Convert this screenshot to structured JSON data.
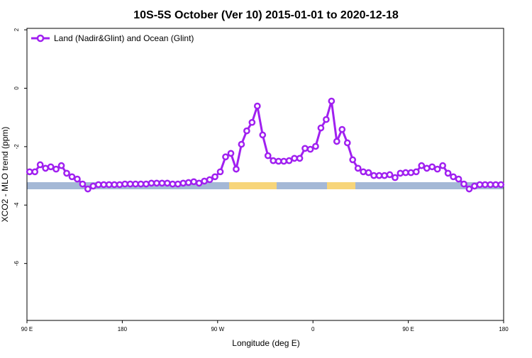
{
  "chart_data": {
    "type": "line",
    "title": "10S-5S October (Ver 10)   2015-01-01 to 2020-12-18",
    "x_label": "Longitude (deg E)",
    "y_label": "XCO2 - MLO trend (ppm)",
    "xlim": [
      90,
      540
    ],
    "ylim": [
      -7.95,
      2.05
    ],
    "xticks": [
      {
        "value": 90,
        "label": "90 E"
      },
      180,
      {
        "value": 270,
        "label": "90 W"
      },
      {
        "value": 360,
        "label": "0"
      },
      {
        "value": 450,
        "label": "90 E"
      },
      {
        "value": 540,
        "label": "180"
      }
    ],
    "yticks": [
      2,
      0,
      -2,
      -4,
      -6
    ],
    "legend_position": "top-left",
    "x": [
      92.5,
      97.5,
      102.5,
      107.5,
      112.5,
      117.5,
      122.5,
      127.5,
      132.5,
      137.5,
      142.5,
      147.5,
      152.5,
      157.5,
      162.5,
      167.5,
      172.5,
      177.5,
      182.5,
      187.5,
      192.5,
      197.5,
      202.5,
      207.5,
      212.5,
      217.5,
      222.5,
      227.5,
      232.5,
      237.5,
      242.5,
      247.5,
      252.5,
      257.5,
      262.5,
      267.5,
      272.5,
      277.5,
      282.5,
      287.5,
      292.5,
      297.5,
      302.5,
      307.5,
      312.5,
      317.5,
      322.5,
      327.5,
      332.5,
      337.5,
      342.5,
      347.5,
      352.5,
      357.5,
      362.5,
      367.5,
      372.5,
      377.5,
      382.5,
      387.5,
      392.5,
      397.5,
      402.5,
      407.5,
      412.5,
      417.5,
      422.5,
      427.5,
      432.5,
      437.5,
      442.5,
      447.5,
      452.5,
      457.5,
      462.5,
      467.5,
      472.5,
      477.5,
      482.5,
      487.5,
      492.5,
      497.5,
      502.5,
      507.5,
      512.5,
      517.5,
      522.5,
      527.5,
      532.5,
      537.5
    ],
    "series": [
      {
        "name": "Land (Nadir&Glint) and Ocean (Glint)",
        "color": "#a020f0",
        "values": [
          -2.86,
          -2.86,
          -2.62,
          -2.74,
          -2.69,
          -2.77,
          -2.65,
          -2.91,
          -3.03,
          -3.11,
          -3.28,
          -3.45,
          -3.35,
          -3.3,
          -3.3,
          -3.3,
          -3.3,
          -3.3,
          -3.28,
          -3.28,
          -3.28,
          -3.28,
          -3.28,
          -3.25,
          -3.25,
          -3.25,
          -3.25,
          -3.28,
          -3.28,
          -3.25,
          -3.23,
          -3.2,
          -3.25,
          -3.18,
          -3.13,
          -3.03,
          -2.86,
          -2.35,
          -2.23,
          -2.77,
          -1.92,
          -1.46,
          -1.17,
          -0.61,
          -1.6,
          -2.31,
          -2.48,
          -2.5,
          -2.5,
          -2.48,
          -2.4,
          -2.4,
          -2.06,
          -2.09,
          -1.99,
          -1.36,
          -1.07,
          -0.44,
          -1.82,
          -1.41,
          -1.87,
          -2.45,
          -2.74,
          -2.86,
          -2.89,
          -2.99,
          -2.99,
          -2.99,
          -2.96,
          -3.06,
          -2.91,
          -2.89,
          -2.89,
          -2.86,
          -2.65,
          -2.74,
          -2.69,
          -2.77,
          -2.65,
          -2.91,
          -3.03,
          -3.11,
          -3.28,
          -3.45,
          -3.35,
          -3.3,
          -3.3,
          -3.3,
          -3.3,
          -3.3
        ]
      }
    ]
  }
}
